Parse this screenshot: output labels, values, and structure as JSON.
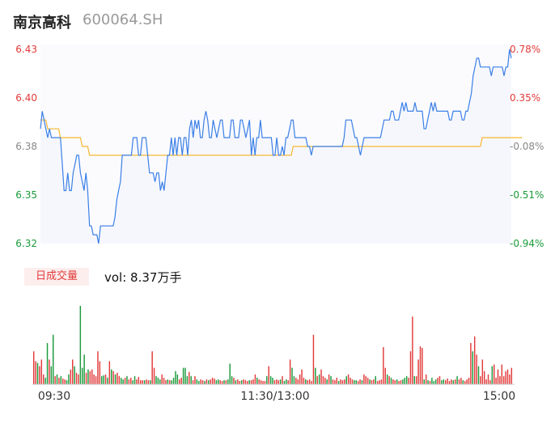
{
  "header": {
    "name": "南京高科",
    "code": "600064.SH"
  },
  "volume_panel": {
    "tag": "日成交量",
    "summary": "vol: 8.37万手"
  },
  "chart_data": [
    {
      "type": "line",
      "title": "",
      "ylim": [
        6.32,
        6.43
      ],
      "y_ticks": [
        "6.43",
        "6.40",
        "6.38",
        "6.35",
        "6.32"
      ],
      "y_right_ticks": [
        "0.78%",
        "0.35%",
        "-0.08%",
        "-0.51%",
        "-0.94%"
      ],
      "x_ticks": [
        "09:30",
        "11:30/13:00",
        "15:00"
      ],
      "colors": {
        "price": "#3a7fe6",
        "avg": "#f5b731",
        "up": "#e23a3a",
        "down": "#1a9a3a",
        "flat": "#18a36a",
        "fill": "#f6f7fd"
      },
      "series": [
        {
          "values": [
            6.385,
            6.395,
            6.39,
            6.385,
            6.38,
            6.385,
            6.38,
            6.38,
            6.38,
            6.38,
            6.38,
            6.38,
            6.365,
            6.35,
            6.35,
            6.36,
            6.35,
            6.35,
            6.36,
            6.365,
            6.37,
            6.37,
            6.36,
            6.355,
            6.35,
            6.36,
            6.35,
            6.33,
            6.33,
            6.325,
            6.325,
            6.325,
            6.32,
            6.33,
            6.33,
            6.33,
            6.33,
            6.33,
            6.33,
            6.33,
            6.33,
            6.335,
            6.345,
            6.35,
            6.355,
            6.37,
            6.37,
            6.37,
            6.37,
            6.37,
            6.37,
            6.38,
            6.38,
            6.38,
            6.37,
            6.37,
            6.38,
            6.38,
            6.38,
            6.37,
            6.36,
            6.36,
            6.36,
            6.355,
            6.36,
            6.36,
            6.35,
            6.355,
            6.35,
            6.36,
            6.37,
            6.37,
            6.38,
            6.37,
            6.38,
            6.37,
            6.38,
            6.38,
            6.37,
            6.38,
            6.38,
            6.37,
            6.385,
            6.39,
            6.38,
            6.39,
            6.385,
            6.39,
            6.38,
            6.38,
            6.39,
            6.395,
            6.39,
            6.38,
            6.38,
            6.39,
            6.385,
            6.38,
            6.385,
            6.39,
            6.39,
            6.38,
            6.38,
            6.38,
            6.38,
            6.39,
            6.39,
            6.38,
            6.38,
            6.38,
            6.39,
            6.39,
            6.385,
            6.38,
            6.385,
            6.39,
            6.37,
            6.38,
            6.37,
            6.38,
            6.38,
            6.39,
            6.38,
            6.38,
            6.38,
            6.38,
            6.38,
            6.38,
            6.37,
            6.37,
            6.38,
            6.37,
            6.37,
            6.375,
            6.37,
            6.38,
            6.38,
            6.385,
            6.39,
            6.39,
            6.38,
            6.38,
            6.38,
            6.38,
            6.38,
            6.38,
            6.38,
            6.375,
            6.375,
            6.37,
            6.375,
            6.375,
            6.375,
            6.375,
            6.375,
            6.375,
            6.375,
            6.375,
            6.375,
            6.375,
            6.375,
            6.375,
            6.375,
            6.375,
            6.375,
            6.375,
            6.375,
            6.38,
            6.39,
            6.39,
            6.39,
            6.39,
            6.385,
            6.38,
            6.38,
            6.375,
            6.37,
            6.375,
            6.38,
            6.38,
            6.38,
            6.38,
            6.38,
            6.38,
            6.38,
            6.38,
            6.38,
            6.38,
            6.385,
            6.39,
            6.39,
            6.39,
            6.39,
            6.395,
            6.395,
            6.39,
            6.39,
            6.39,
            6.395,
            6.4,
            6.395,
            6.4,
            6.395,
            6.395,
            6.395,
            6.395,
            6.4,
            6.395,
            6.395,
            6.395,
            6.395,
            6.385,
            6.385,
            6.39,
            6.395,
            6.4,
            6.395,
            6.4,
            6.395,
            6.395,
            6.395,
            6.395,
            6.395,
            6.395,
            6.395,
            6.39,
            6.39,
            6.395,
            6.395,
            6.395,
            6.395,
            6.395,
            6.39,
            6.39,
            6.395,
            6.395,
            6.4,
            6.405,
            6.415,
            6.42,
            6.425,
            6.425,
            6.42,
            6.42,
            6.42,
            6.42,
            6.42,
            6.42,
            6.415,
            6.42,
            6.42,
            6.42,
            6.42,
            6.42,
            6.42,
            6.415,
            6.42,
            6.42,
            6.43,
            6.425
          ]
        },
        {
          "values": [
            6.39,
            6.39,
            6.39,
            6.39,
            6.385,
            6.385,
            6.385,
            6.385,
            6.385,
            6.385,
            6.385,
            6.38,
            6.38,
            6.38,
            6.38,
            6.38,
            6.38,
            6.38,
            6.38,
            6.38,
            6.38,
            6.38,
            6.38,
            6.375,
            6.375,
            6.375,
            6.375,
            6.37,
            6.37,
            6.37,
            6.37,
            6.37,
            6.37,
            6.37,
            6.37,
            6.37,
            6.37,
            6.37,
            6.37,
            6.37,
            6.37,
            6.37,
            6.37,
            6.37,
            6.37,
            6.37,
            6.37,
            6.37,
            6.37,
            6.37,
            6.37,
            6.37,
            6.37,
            6.37,
            6.37,
            6.37,
            6.37,
            6.37,
            6.37,
            6.37,
            6.37,
            6.37,
            6.37,
            6.37,
            6.37,
            6.37,
            6.37,
            6.37,
            6.37,
            6.37,
            6.37,
            6.37,
            6.37,
            6.37,
            6.37,
            6.37,
            6.37,
            6.37,
            6.37,
            6.37,
            6.37,
            6.37,
            6.37,
            6.37,
            6.37,
            6.37,
            6.37,
            6.37,
            6.37,
            6.37,
            6.37,
            6.37,
            6.37,
            6.37,
            6.37,
            6.37,
            6.37,
            6.37,
            6.37,
            6.37,
            6.37,
            6.37,
            6.37,
            6.37,
            6.37,
            6.37,
            6.37,
            6.37,
            6.37,
            6.37,
            6.37,
            6.37,
            6.37,
            6.37,
            6.37,
            6.37,
            6.37,
            6.37,
            6.37,
            6.37,
            6.37,
            6.37,
            6.37,
            6.37,
            6.37,
            6.37,
            6.37,
            6.37,
            6.37,
            6.37,
            6.37,
            6.37,
            6.37,
            6.37,
            6.37,
            6.37,
            6.37,
            6.37,
            6.37,
            6.375,
            6.375,
            6.375,
            6.375,
            6.375,
            6.375,
            6.375,
            6.375,
            6.375,
            6.375,
            6.375,
            6.375,
            6.375,
            6.375,
            6.375,
            6.375,
            6.375,
            6.375,
            6.375,
            6.375,
            6.375,
            6.375,
            6.375,
            6.375,
            6.375,
            6.375,
            6.375,
            6.375,
            6.375,
            6.375,
            6.375,
            6.375,
            6.375,
            6.375,
            6.375,
            6.375,
            6.375,
            6.375,
            6.375,
            6.375,
            6.375,
            6.375,
            6.375,
            6.375,
            6.375,
            6.375,
            6.375,
            6.375,
            6.375,
            6.375,
            6.375,
            6.375,
            6.375,
            6.375,
            6.375,
            6.375,
            6.375,
            6.375,
            6.375,
            6.375,
            6.375,
            6.375,
            6.375,
            6.375,
            6.375,
            6.375,
            6.375,
            6.375,
            6.375,
            6.375,
            6.375,
            6.375,
            6.375,
            6.375,
            6.375,
            6.375,
            6.375,
            6.375,
            6.375,
            6.375,
            6.375,
            6.375,
            6.375,
            6.375,
            6.375,
            6.375,
            6.375,
            6.375,
            6.375,
            6.375,
            6.375,
            6.375,
            6.375,
            6.375,
            6.375,
            6.375,
            6.375,
            6.375,
            6.375,
            6.375,
            6.375,
            6.375,
            6.375,
            6.375,
            6.38,
            6.38,
            6.38,
            6.38,
            6.38,
            6.38,
            6.38,
            6.38,
            6.38,
            6.38,
            6.38,
            6.38,
            6.38,
            6.38,
            6.38,
            6.38,
            6.38,
            6.38,
            6.38,
            6.38,
            6.38,
            6.38,
            6.38
          ]
        }
      ]
    },
    {
      "type": "bar",
      "title": "",
      "values": [
        40,
        28,
        26,
        22,
        30,
        12,
        8,
        50,
        30,
        22,
        60,
        10,
        12,
        8,
        10,
        7,
        6,
        5,
        12,
        18,
        30,
        22,
        14,
        12,
        95,
        20,
        36,
        14,
        18,
        16,
        18,
        12,
        10,
        40,
        28,
        10,
        11,
        12,
        8,
        28,
        18,
        16,
        12,
        14,
        10,
        8,
        6,
        8,
        10,
        6,
        8,
        5,
        10,
        6,
        9,
        5,
        5,
        5,
        6,
        5,
        5,
        40,
        20,
        10,
        8,
        6,
        12,
        8,
        5,
        6,
        5,
        5,
        8,
        16,
        12,
        6,
        8,
        20,
        20,
        10,
        15,
        10,
        5,
        10,
        6,
        4,
        6,
        5,
        4,
        6,
        5,
        6,
        8,
        7,
        5,
        6,
        5,
        4,
        5,
        5,
        6,
        25,
        10,
        8,
        5,
        6,
        4,
        5,
        6,
        5,
        4,
        5,
        5,
        6,
        12,
        8,
        6,
        5,
        4,
        4,
        10,
        22,
        10,
        8,
        5,
        6,
        5,
        6,
        10,
        4,
        6,
        5,
        30,
        20,
        10,
        8,
        6,
        12,
        18,
        8,
        6,
        5,
        6,
        4,
        60,
        20,
        10,
        12,
        18,
        10,
        8,
        6,
        12,
        10,
        6,
        5,
        8,
        4,
        6,
        5,
        6,
        10,
        12,
        8,
        6,
        5,
        5,
        4,
        6,
        5,
        12,
        10,
        8,
        6,
        5,
        6,
        10,
        4,
        5,
        6,
        45,
        20,
        12,
        10,
        8,
        6,
        5,
        6,
        4,
        5,
        6,
        8,
        10,
        8,
        40,
        82,
        10,
        10,
        30,
        46,
        44,
        6,
        12,
        5,
        4,
        8,
        4,
        6,
        8,
        10,
        5,
        6,
        5,
        7,
        4,
        6,
        5,
        6,
        10,
        6,
        8,
        5,
        4,
        6,
        8,
        50,
        40,
        58,
        36,
        22,
        10,
        30,
        16,
        6,
        12,
        5,
        22,
        24,
        8,
        18,
        10,
        24,
        10,
        16,
        18,
        12,
        20
      ],
      "colors_by_index": [
        "up",
        "up",
        "down",
        "up",
        "up",
        "up",
        "down",
        "down",
        "up",
        "down",
        "down",
        "up",
        "down",
        "up",
        "down",
        "up",
        "up",
        "down",
        "down",
        "up",
        "up",
        "down",
        "up",
        "up",
        "down",
        "down",
        "down",
        "up",
        "down",
        "up",
        "up",
        "up",
        "up",
        "up",
        "up",
        "down",
        "down",
        "up",
        "down",
        "up",
        "down",
        "up",
        "down",
        "up",
        "up",
        "down",
        "down",
        "up",
        "down",
        "up",
        "up",
        "down",
        "down",
        "up",
        "up",
        "up",
        "up",
        "down",
        "up",
        "up",
        "down",
        "up",
        "up",
        "down",
        "down",
        "down",
        "up",
        "up",
        "up",
        "down",
        "up",
        "down",
        "down",
        "down",
        "down",
        "up",
        "up",
        "down",
        "down",
        "down",
        "up",
        "down",
        "up",
        "up",
        "down",
        "down",
        "up",
        "up",
        "down",
        "up",
        "down",
        "up",
        "up",
        "up",
        "down",
        "down",
        "up",
        "up",
        "down",
        "up",
        "down",
        "down",
        "down",
        "up",
        "down",
        "up",
        "up",
        "down",
        "up",
        "up",
        "up",
        "down",
        "up",
        "up",
        "up",
        "down",
        "up",
        "up",
        "up",
        "up",
        "down",
        "up",
        "down",
        "down",
        "up",
        "up",
        "up",
        "down",
        "up",
        "down",
        "down",
        "up",
        "up",
        "down",
        "down",
        "up",
        "up",
        "up",
        "up",
        "up",
        "down",
        "up",
        "up",
        "up",
        "up",
        "down",
        "up",
        "down",
        "up",
        "up",
        "up",
        "down",
        "up",
        "down",
        "up",
        "up",
        "up",
        "down",
        "up",
        "up",
        "up",
        "down",
        "up",
        "up",
        "up",
        "down",
        "down",
        "up",
        "up",
        "down",
        "up",
        "up",
        "up",
        "down",
        "up",
        "up",
        "down",
        "up",
        "up",
        "up",
        "up",
        "up",
        "down",
        "up",
        "down",
        "up",
        "up",
        "down",
        "up",
        "up",
        "down",
        "down",
        "down",
        "up",
        "up",
        "up",
        "down",
        "up",
        "up",
        "up",
        "up",
        "down",
        "up",
        "down",
        "up",
        "down",
        "down",
        "down",
        "up",
        "up",
        "down",
        "down",
        "up",
        "up",
        "up",
        "up",
        "down",
        "up",
        "down",
        "up",
        "up",
        "down",
        "up",
        "up",
        "up",
        "up",
        "down",
        "up",
        "up",
        "down",
        "up",
        "up",
        "up",
        "up",
        "up",
        "up",
        "down",
        "up",
        "up",
        "up",
        "up"
      ]
    }
  ]
}
